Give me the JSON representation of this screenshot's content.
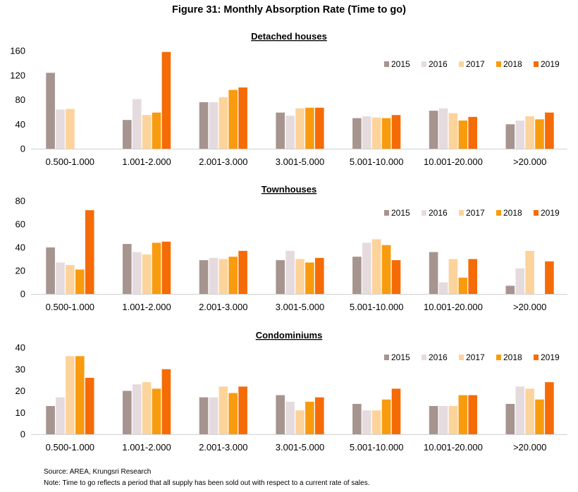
{
  "title": "Figure 31: Monthly Absorption Rate (Time to go)",
  "footer": {
    "source": "Source: AREA, Krungsri Research",
    "note": "Note: Time to go reflects a period that all supply has been sold out with respect to a current rate of sales."
  },
  "colors": {
    "2015": "#a6948f",
    "2016": "#e5dbde",
    "2017": "#fdd39c",
    "2018": "#f99b0e",
    "2019": "#f56b06"
  },
  "chart_data": [
    {
      "type": "bar",
      "title": "Detached houses",
      "categories": [
        "0.500-1.000",
        "1.001-2.000",
        "2.001-3.000",
        "3.001-5.000",
        "5.001-10.000",
        "10.001-20.000",
        ">20.000"
      ],
      "ylim": [
        0,
        160
      ],
      "yticks": [
        0,
        40,
        80,
        120,
        160
      ],
      "legend_position": "top-right",
      "series": [
        {
          "name": "2015",
          "values": [
            124,
            47,
            76,
            59,
            50,
            62,
            40
          ]
        },
        {
          "name": "2016",
          "values": [
            64,
            81,
            76,
            54,
            53,
            66,
            46
          ]
        },
        {
          "name": "2017",
          "values": [
            65,
            55,
            84,
            66,
            51,
            58,
            53
          ]
        },
        {
          "name": "2018",
          "values": [
            null,
            59,
            96,
            67,
            50,
            46,
            48
          ]
        },
        {
          "name": "2019",
          "values": [
            null,
            158,
            100,
            67,
            55,
            52,
            59
          ]
        }
      ]
    },
    {
      "type": "bar",
      "title": "Townhouses",
      "categories": [
        "0.500-1.000",
        "1.001-2.000",
        "2.001-3.000",
        "3.001-5.000",
        "5.001-10.000",
        "10.001-20.000",
        ">20.000"
      ],
      "ylim": [
        0,
        80
      ],
      "yticks": [
        0,
        20,
        40,
        60,
        80
      ],
      "legend_position": "top-right",
      "series": [
        {
          "name": "2015",
          "values": [
            40,
            43,
            29,
            29,
            32,
            36,
            7
          ]
        },
        {
          "name": "2016",
          "values": [
            27,
            36,
            31,
            37,
            44,
            10,
            22
          ]
        },
        {
          "name": "2017",
          "values": [
            25,
            34,
            30,
            30,
            47,
            30,
            37
          ]
        },
        {
          "name": "2018",
          "values": [
            21,
            44,
            32,
            27,
            42,
            14,
            null
          ]
        },
        {
          "name": "2019",
          "values": [
            72,
            45,
            37,
            31,
            29,
            30,
            28
          ]
        }
      ]
    },
    {
      "type": "bar",
      "title": "Condominiums",
      "categories": [
        "0.500-1.000",
        "1.001-2.000",
        "2.001-3.000",
        "3.001-5.000",
        "5.001-10.000",
        "10.001-20.000",
        ">20.000"
      ],
      "ylim": [
        0,
        40
      ],
      "yticks": [
        0,
        10,
        20,
        30,
        40
      ],
      "legend_position": "top-right",
      "series": [
        {
          "name": "2015",
          "values": [
            13,
            20,
            17,
            18,
            14,
            13,
            14
          ]
        },
        {
          "name": "2016",
          "values": [
            17,
            23,
            17,
            15,
            11,
            13,
            22
          ]
        },
        {
          "name": "2017",
          "values": [
            36,
            24,
            22,
            11,
            11,
            13,
            21
          ]
        },
        {
          "name": "2018",
          "values": [
            36,
            21,
            19,
            15,
            16,
            18,
            16
          ]
        },
        {
          "name": "2019",
          "values": [
            26,
            30,
            22,
            17,
            21,
            18,
            24
          ]
        }
      ]
    }
  ]
}
